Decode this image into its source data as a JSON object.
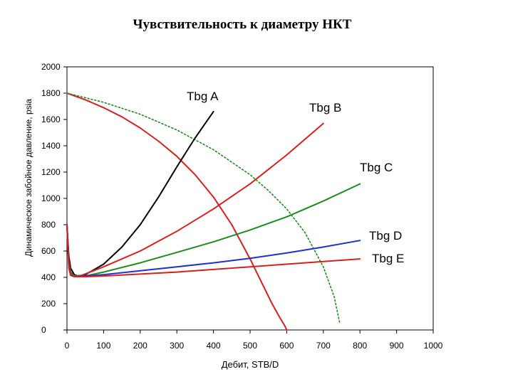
{
  "chart_data": {
    "type": "line",
    "title": "Чувствительность к диаметру НКТ",
    "xlabel": "Дебит, STB/D",
    "ylabel": "Динамическое забойное давление, psia",
    "xlim": [
      0,
      1000
    ],
    "ylim": [
      0,
      2000
    ],
    "xticks": [
      0,
      100,
      200,
      300,
      400,
      500,
      600,
      700,
      800,
      900,
      1000
    ],
    "yticks": [
      0,
      200,
      400,
      600,
      800,
      1000,
      1200,
      1400,
      1600,
      1800,
      2000
    ],
    "grid": false,
    "series": [
      {
        "name": "",
        "kind": "ipr",
        "color": "#d62020",
        "dash": "",
        "x": [
          0,
          50,
          100,
          150,
          200,
          250,
          300,
          350,
          400,
          450,
          500,
          530,
          560,
          580,
          595,
          600
        ],
        "y": [
          1800,
          1750,
          1690,
          1620,
          1535,
          1435,
          1320,
          1180,
          1010,
          800,
          540,
          370,
          200,
          100,
          30,
          0
        ]
      },
      {
        "name": "",
        "kind": "ipr",
        "color": "#1e8a1e",
        "dash": "2,3",
        "x": [
          0,
          100,
          200,
          300,
          400,
          500,
          550,
          600,
          650,
          700,
          730,
          745
        ],
        "y": [
          1800,
          1730,
          1640,
          1520,
          1370,
          1180,
          1060,
          920,
          740,
          480,
          250,
          50
        ]
      },
      {
        "name": "Tbg A",
        "kind": "tpr",
        "color": "#000000",
        "dash": "",
        "x": [
          0,
          5,
          10,
          20,
          30,
          50,
          100,
          150,
          200,
          250,
          300,
          350,
          400
        ],
        "y": [
          800,
          560,
          470,
          420,
          410,
          420,
          500,
          630,
          800,
          1010,
          1240,
          1460,
          1660
        ]
      },
      {
        "name": "Tbg B",
        "kind": "tpr",
        "color": "#d62020",
        "dash": "",
        "x": [
          0,
          5,
          10,
          20,
          40,
          100,
          200,
          300,
          400,
          500,
          600,
          700
        ],
        "y": [
          800,
          520,
          440,
          410,
          415,
          480,
          600,
          750,
          920,
          1110,
          1330,
          1570
        ]
      },
      {
        "name": "Tbg C",
        "kind": "tpr",
        "color": "#1e8a1e",
        "dash": "",
        "x": [
          0,
          5,
          10,
          20,
          50,
          100,
          200,
          300,
          400,
          500,
          600,
          700,
          800
        ],
        "y": [
          800,
          500,
          430,
          410,
          410,
          440,
          510,
          590,
          670,
          760,
          860,
          980,
          1110
        ]
      },
      {
        "name": "Tbg D",
        "kind": "tpr",
        "color": "#1f2fd0",
        "dash": "",
        "x": [
          0,
          5,
          10,
          20,
          50,
          100,
          200,
          300,
          400,
          500,
          600,
          700,
          800
        ],
        "y": [
          800,
          480,
          420,
          405,
          410,
          420,
          450,
          480,
          510,
          545,
          585,
          630,
          680
        ]
      },
      {
        "name": "Tbg E",
        "kind": "tpr",
        "color": "#d62020",
        "dash": "",
        "x": [
          0,
          5,
          10,
          20,
          50,
          100,
          200,
          300,
          400,
          500,
          600,
          700,
          800
        ],
        "y": [
          800,
          470,
          415,
          405,
          405,
          410,
          425,
          440,
          460,
          480,
          500,
          520,
          540
        ]
      }
    ]
  }
}
